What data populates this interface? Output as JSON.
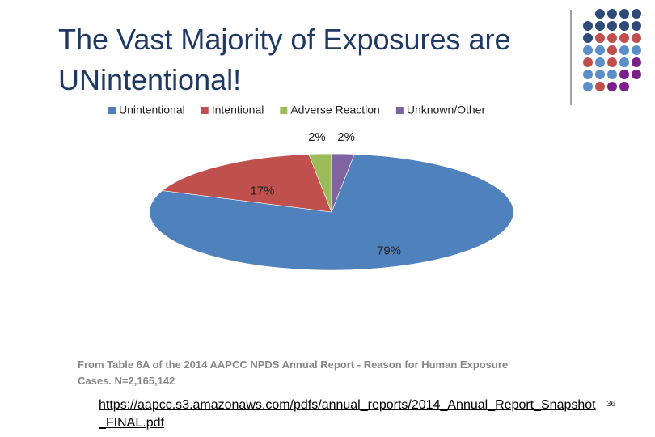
{
  "chart_data": {
    "type": "pie",
    "title": "The Vast Majority of Exposures are UNintentional!",
    "categories": [
      "Unintentional",
      "Intentional",
      "Adverse Reaction",
      "Unknown/Other"
    ],
    "values": [
      79,
      17,
      2,
      2
    ],
    "value_labels": [
      "79%",
      "17%",
      "2%",
      "2%"
    ],
    "colors": [
      "#4f81bd",
      "#c0504d",
      "#9bbb59",
      "#8064a2"
    ],
    "legend": "top",
    "caption": "From Table 6A of the 2014 AAPCC NPDS Annual Report - Reason for Human Exposure Cases.  N=2,165,142"
  },
  "footer": {
    "link": "https://aapcc.s3.amazonaws.com/pdfs/annual_reports/2014_Annual_Report_Snapshot_FINAL.pdf",
    "page_number": "36"
  }
}
